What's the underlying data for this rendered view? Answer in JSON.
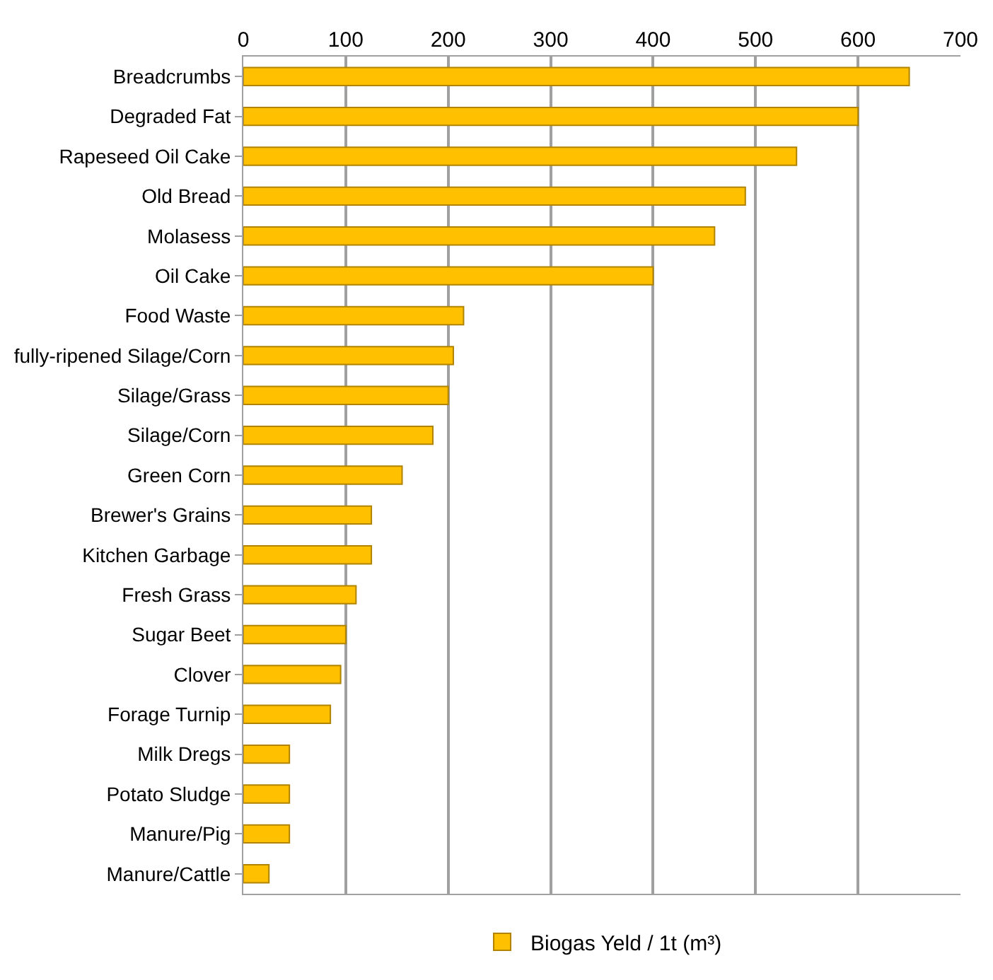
{
  "chart_data": {
    "type": "bar",
    "orientation": "horizontal",
    "categories": [
      "Breadcrumbs",
      "Degraded Fat",
      "Rapeseed Oil Cake",
      "Old Bread",
      "Molasess",
      "Oil Cake",
      "Food Waste",
      "fully-ripened Silage/Corn",
      "Silage/Grass",
      "Silage/Corn",
      "Green Corn",
      "Brewer's Grains",
      "Kitchen Garbage",
      "Fresh Grass",
      "Sugar Beet",
      "Clover",
      "Forage Turnip",
      "Milk Dregs",
      "Potato Sludge",
      "Manure/Pig",
      "Manure/Cattle"
    ],
    "series": [
      {
        "name": "Biogas Yeld / 1t (m³)",
        "color": "#ffc000",
        "values": [
          650,
          600,
          540,
          490,
          460,
          400,
          215,
          205,
          200,
          185,
          155,
          125,
          125,
          110,
          100,
          95,
          85,
          45,
          45,
          45,
          25
        ]
      }
    ],
    "xlim": [
      0,
      700
    ],
    "xticks": [
      0,
      100,
      200,
      300,
      400,
      500,
      600,
      700
    ],
    "grid": "x",
    "legend": "bottom"
  }
}
